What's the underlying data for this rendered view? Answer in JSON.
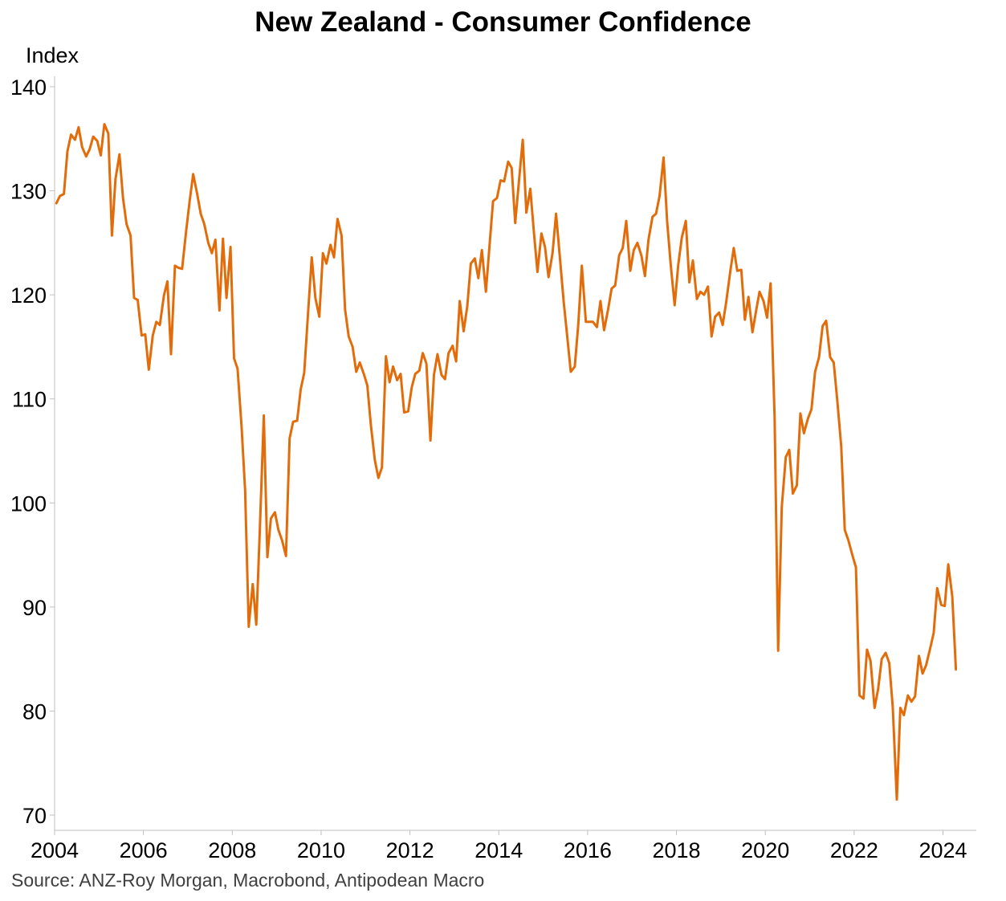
{
  "chart_data": {
    "type": "line",
    "title": "New Zealand - Consumer Confidence",
    "ylabel": "Index",
    "xlabel": "",
    "source": "Source: ANZ-Roy Morgan, Macrobond, Antipodean Macro",
    "ylim": [
      70,
      140
    ],
    "xlim": [
      2004.0,
      2024.75
    ],
    "yticks": [
      "70",
      "80",
      "90",
      "100",
      "110",
      "120",
      "130",
      "140"
    ],
    "xticks": [
      "2004",
      "2006",
      "2008",
      "2010",
      "2012",
      "2014",
      "2016",
      "2018",
      "2020",
      "2022",
      "2024"
    ],
    "grid": false,
    "legend": "none",
    "line_color": "#E36C0A",
    "series": [
      {
        "x": [
          2004.04,
          2004.12,
          2004.21,
          2004.29,
          2004.37,
          2004.46,
          2004.54,
          2004.62,
          2004.71,
          2004.79,
          2004.87,
          2004.96,
          2005.04,
          2005.12,
          2005.21,
          2005.29,
          2005.37,
          2005.46,
          2005.54,
          2005.62,
          2005.71,
          2005.79,
          2005.87,
          2005.96,
          2006.04,
          2006.12,
          2006.21,
          2006.29,
          2006.37,
          2006.46,
          2006.54,
          2006.62,
          2006.71,
          2006.79,
          2006.87,
          2006.96,
          2007.04,
          2007.12,
          2007.21,
          2007.29,
          2007.37,
          2007.46,
          2007.54,
          2007.62,
          2007.71,
          2007.79,
          2007.87,
          2007.96,
          2008.04,
          2008.12,
          2008.21,
          2008.29,
          2008.37,
          2008.46,
          2008.54,
          2008.62,
          2008.71,
          2008.79,
          2008.87,
          2008.96,
          2009.04,
          2009.12,
          2009.21,
          2009.29,
          2009.37,
          2009.46,
          2009.54,
          2009.62,
          2009.71,
          2009.79,
          2009.87,
          2009.96,
          2010.04,
          2010.12,
          2010.21,
          2010.29,
          2010.37,
          2010.46,
          2010.54,
          2010.62,
          2010.71,
          2010.79,
          2010.87,
          2010.96,
          2011.04,
          2011.12,
          2011.21,
          2011.29,
          2011.37,
          2011.46,
          2011.54,
          2011.62,
          2011.71,
          2011.79,
          2011.87,
          2011.96,
          2012.04,
          2012.12,
          2012.21,
          2012.29,
          2012.37,
          2012.46,
          2012.54,
          2012.62,
          2012.71,
          2012.79,
          2012.87,
          2012.96,
          2013.04,
          2013.12,
          2013.21,
          2013.29,
          2013.37,
          2013.46,
          2013.54,
          2013.62,
          2013.71,
          2013.79,
          2013.87,
          2013.96,
          2014.04,
          2014.12,
          2014.21,
          2014.29,
          2014.37,
          2014.46,
          2014.54,
          2014.62,
          2014.71,
          2014.79,
          2014.87,
          2014.96,
          2015.04,
          2015.12,
          2015.21,
          2015.29,
          2015.37,
          2015.46,
          2015.54,
          2015.62,
          2015.71,
          2015.79,
          2015.87,
          2015.96,
          2016.04,
          2016.12,
          2016.21,
          2016.29,
          2016.37,
          2016.46,
          2016.54,
          2016.62,
          2016.71,
          2016.79,
          2016.87,
          2016.96,
          2017.04,
          2017.12,
          2017.21,
          2017.29,
          2017.37,
          2017.46,
          2017.54,
          2017.62,
          2017.71,
          2017.79,
          2017.87,
          2017.96,
          2018.04,
          2018.12,
          2018.21,
          2018.29,
          2018.37,
          2018.46,
          2018.54,
          2018.62,
          2018.71,
          2018.79,
          2018.87,
          2018.96,
          2019.04,
          2019.12,
          2019.21,
          2019.29,
          2019.37,
          2019.46,
          2019.54,
          2019.62,
          2019.71,
          2019.79,
          2019.87,
          2019.96,
          2020.04,
          2020.12,
          2020.21,
          2020.29,
          2020.37,
          2020.46,
          2020.54,
          2020.62,
          2020.71,
          2020.79,
          2020.87,
          2020.96,
          2021.04,
          2021.12,
          2021.21,
          2021.29,
          2021.37,
          2021.46,
          2021.54,
          2021.62,
          2021.71,
          2021.79,
          2021.87,
          2021.96,
          2022.04,
          2022.12,
          2022.21,
          2022.29,
          2022.37,
          2022.46,
          2022.54,
          2022.62,
          2022.71,
          2022.79,
          2022.87,
          2022.96,
          2023.04,
          2023.12,
          2023.21,
          2023.29,
          2023.37,
          2023.46,
          2023.54,
          2023.62,
          2023.71,
          2023.79,
          2023.87,
          2023.96,
          2024.04,
          2024.12,
          2024.21,
          2024.29
        ],
        "values": [
          128.8,
          129.5,
          129.7,
          133.8,
          135.4,
          134.9,
          136.1,
          134.2,
          133.3,
          134.0,
          135.2,
          134.8,
          133.4,
          136.4,
          135.5,
          125.7,
          131.1,
          133.5,
          129.3,
          126.8,
          125.7,
          119.7,
          119.5,
          116.1,
          116.2,
          112.8,
          116.1,
          117.4,
          117.1,
          119.9,
          121.3,
          114.3,
          122.8,
          122.6,
          122.5,
          126.1,
          129.0,
          131.6,
          129.7,
          127.8,
          126.8,
          125.0,
          124.0,
          125.3,
          118.5,
          125.4,
          119.7,
          124.6,
          113.9,
          112.9,
          107.3,
          101.2,
          88.1,
          92.2,
          88.3,
          97.4,
          108.4,
          94.8,
          98.5,
          99.1,
          97.4,
          96.4,
          94.9,
          106.2,
          107.8,
          107.9,
          110.9,
          112.5,
          118.5,
          123.6,
          119.7,
          117.9,
          124.0,
          123.0,
          124.8,
          123.6,
          127.3,
          125.7,
          118.6,
          116.0,
          115.0,
          112.6,
          113.5,
          112.4,
          111.3,
          107.5,
          104.1,
          102.4,
          103.4,
          114.1,
          111.6,
          113.1,
          111.8,
          112.4,
          108.7,
          108.8,
          111.1,
          112.4,
          112.7,
          114.4,
          113.4,
          106.0,
          112.3,
          114.3,
          112.3,
          111.9,
          114.4,
          115.1,
          113.6,
          119.4,
          116.5,
          118.9,
          123.0,
          123.5,
          121.6,
          124.3,
          120.3,
          124.6,
          129.0,
          129.3,
          131.0,
          130.9,
          132.8,
          132.2,
          126.9,
          131.2,
          134.9,
          127.9,
          130.2,
          126.0,
          122.2,
          125.9,
          124.6,
          121.7,
          124.0,
          127.8,
          123.9,
          119.4,
          116.0,
          112.6,
          113.1,
          117.2,
          122.8,
          117.4,
          117.4,
          117.4,
          116.9,
          119.4,
          116.6,
          118.6,
          120.6,
          120.9,
          123.8,
          124.5,
          127.1,
          122.3,
          124.3,
          125.0,
          123.8,
          121.8,
          125.3,
          127.5,
          127.8,
          129.5,
          133.2,
          127.1,
          122.9,
          119.0,
          122.9,
          125.5,
          127.1,
          121.2,
          123.3,
          119.6,
          120.3,
          120.0,
          120.8,
          116.0,
          117.9,
          118.3,
          117.1,
          119.3,
          122.2,
          124.5,
          122.3,
          122.4,
          117.6,
          119.8,
          116.4,
          118.4,
          120.3,
          119.4,
          117.8,
          121.1,
          108.2,
          85.8,
          99.6,
          104.4,
          105.1,
          100.9,
          101.7,
          108.6,
          106.7,
          108.1,
          109.0,
          112.6,
          114.0,
          117.0,
          117.5,
          114.0,
          113.5,
          109.9,
          105.4,
          97.4,
          96.4,
          95.0,
          93.8,
          81.5,
          81.2,
          85.9,
          84.8,
          80.3,
          82.1,
          85.0,
          85.6,
          84.6,
          80.3,
          71.5,
          80.3,
          79.6,
          81.5,
          80.9,
          81.4,
          85.3,
          83.6,
          84.4,
          86.0,
          87.5,
          91.8,
          90.2,
          90.1,
          94.1,
          91.0,
          84.0
        ]
      }
    ]
  }
}
